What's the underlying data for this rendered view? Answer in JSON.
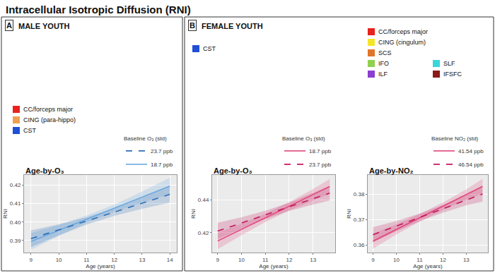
{
  "title": "Intracellular Isotropic Diffusion (RNI)",
  "panels": [
    {
      "label": "A",
      "title": "MALE YOUTH",
      "tract_groups": [
        [
          {
            "name": "CC/forceps major",
            "color": "#e8231d"
          },
          {
            "name": "CING (para-hippo)",
            "color": "#f0a050"
          },
          {
            "name": "CST",
            "color": "#1f4fd6"
          }
        ]
      ]
    },
    {
      "label": "B",
      "title": "FEMALE YOUTH",
      "tract_groups": [
        [
          {
            "name": "CST",
            "color": "#1f4fd6"
          }
        ],
        [
          {
            "name": "CC/forceps major",
            "color": "#e8231d"
          },
          {
            "name": "CING (cingulum)",
            "color": "#f5e52a"
          },
          {
            "name": "SCS",
            "color": "#e0742a"
          },
          {
            "name": "IFO",
            "color": "#8fd14f"
          },
          {
            "name": "ILF",
            "color": "#8a3fd1"
          },
          {
            "name": "SLF",
            "color": "#3ad6dc"
          },
          {
            "name": "IFSFC",
            "color": "#8b1a1a"
          }
        ]
      ]
    }
  ],
  "chart_data": [
    {
      "type": "line",
      "title": "Age-by-O₃",
      "x_label": "Age (years)",
      "y_label": "RNI",
      "legend_title": "Baseline O₃ (std)",
      "legend": "top right",
      "grid": true,
      "x": [
        9,
        10,
        11,
        12,
        13,
        14
      ],
      "xlim": [
        8.75,
        14.25
      ],
      "xticks": [
        9,
        10,
        11,
        12,
        13,
        14
      ],
      "ylim": [
        0.3835,
        0.4255
      ],
      "yticks": [
        0.39,
        {
          "value": 0.4,
          "label": "0.40"
        },
        0.41,
        0.42
      ],
      "series": [
        {
          "name": "18.7 ppb",
          "color": "#6aa9e0",
          "line_style": "solid",
          "values": [
            0.3895,
            0.3955,
            0.4015,
            0.4075,
            0.4135,
            0.4195
          ],
          "lower": [
            0.385,
            0.3925,
            0.3995,
            0.4055,
            0.4105,
            0.415
          ],
          "upper": [
            0.394,
            0.3985,
            0.4035,
            0.4095,
            0.4165,
            0.424
          ]
        },
        {
          "name": "23.7 ppb",
          "color": "#2f6fb5",
          "line_style": "dashed",
          "values": [
            0.391,
            0.3958,
            0.4006,
            0.4054,
            0.4102,
            0.415
          ],
          "lower": [
            0.3865,
            0.3928,
            0.3986,
            0.4034,
            0.4072,
            0.4105
          ],
          "upper": [
            0.3955,
            0.3988,
            0.4026,
            0.4074,
            0.4132,
            0.4195
          ]
        }
      ]
    },
    {
      "type": "line",
      "title": "Age-by-O₃",
      "x_label": "Age (years)",
      "y_label": "RNI",
      "legend_title": "Baseline O₃ (std)",
      "legend": "top right",
      "grid": true,
      "x": [
        9,
        10,
        11,
        12,
        13,
        13.7
      ],
      "xlim": [
        8.77,
        13.93
      ],
      "xticks": [
        9,
        10,
        11,
        12,
        13
      ],
      "ylim": [
        0.408,
        0.455
      ],
      "yticks": [
        0.42,
        0.44
      ],
      "series": [
        {
          "name": "18.7 ppb",
          "color": "#e0457b",
          "line_style": "solid",
          "values": [
            0.415,
            0.422,
            0.429,
            0.436,
            0.443,
            0.448
          ],
          "lower": [
            0.41,
            0.4185,
            0.4265,
            0.4335,
            0.4395,
            0.4435
          ],
          "upper": [
            0.42,
            0.4255,
            0.4315,
            0.4385,
            0.4465,
            0.4525
          ]
        },
        {
          "name": "23.7 ppb",
          "color": "#c2185b",
          "line_style": "dashed",
          "values": [
            0.421,
            0.4259,
            0.4308,
            0.4357,
            0.4406,
            0.444
          ],
          "lower": [
            0.416,
            0.4224,
            0.4283,
            0.4332,
            0.4371,
            0.4395
          ],
          "upper": [
            0.426,
            0.4294,
            0.4333,
            0.4382,
            0.4441,
            0.4485
          ]
        }
      ]
    },
    {
      "type": "line",
      "title": "Age-by-NO₂",
      "x_label": "Age (years)",
      "y_label": "RNI",
      "legend_title": "Baseline NO₂ (std)",
      "legend": "top right",
      "grid": true,
      "x": [
        9,
        10,
        11,
        12,
        13,
        13.7
      ],
      "xlim": [
        8.77,
        13.93
      ],
      "xticks": [
        9,
        10,
        11,
        12,
        13
      ],
      "ylim": [
        0.357,
        0.3875
      ],
      "yticks": [
        0.36,
        0.37,
        0.38
      ],
      "series": [
        {
          "name": "41.54 ppb",
          "color": "#e0457b",
          "line_style": "solid",
          "values": [
            0.3615,
            0.3661,
            0.3707,
            0.3752,
            0.3798,
            0.383
          ],
          "lower": [
            0.3585,
            0.3641,
            0.3692,
            0.3737,
            0.3778,
            0.38
          ],
          "upper": [
            0.3645,
            0.3681,
            0.3722,
            0.3767,
            0.3818,
            0.386
          ]
        },
        {
          "name": "46.54 ppb",
          "color": "#c2185b",
          "line_style": "dashed",
          "values": [
            0.364,
            0.3674,
            0.3708,
            0.3742,
            0.3776,
            0.38
          ],
          "lower": [
            0.361,
            0.3654,
            0.3693,
            0.3727,
            0.3756,
            0.377
          ],
          "upper": [
            0.367,
            0.3694,
            0.3723,
            0.3757,
            0.3796,
            0.383
          ]
        }
      ]
    }
  ]
}
